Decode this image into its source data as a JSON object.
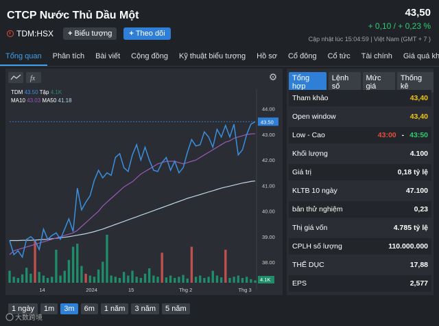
{
  "header": {
    "title": "CTCP Nước Thủ Dầu Một",
    "ticker": "TDM:HSX",
    "chart_button": "Biểu tượng",
    "follow_button": "Theo dõi",
    "price": "43,50",
    "change": "+ 0,10 / + 0,23 %",
    "updated": "Cập nhật lúc   15:04:59 | Việt Nam (GMT + 7 )"
  },
  "tabs": [
    "Tổng quan",
    "Phân tích",
    "Bài viết",
    "Cộng đồng",
    "Kỹ thuật biểu tượng",
    "Hồ sơ",
    "Cổ đông",
    "Cổ tức",
    "Tài chính",
    "Giá quá khứ"
  ],
  "legend": {
    "ticker": "TDM",
    "price": "43.50",
    "vol_label": "Tập",
    "vol": "4.1K",
    "ma10_label": "MA10",
    "ma10": "43.03",
    "ma50_label": "MA50",
    "ma50": "41.18"
  },
  "ranges": [
    "1 ngày",
    "1m",
    "3m",
    "6m",
    "1 năm",
    "3 năm",
    "5 năm"
  ],
  "side": {
    "subtabs": [
      "Tổng hợp",
      "Lệnh số",
      "Mức giá",
      "Thống kê"
    ],
    "rows": [
      {
        "label": "Tham khảo",
        "value": "43,40"
      },
      {
        "label": "Open window",
        "value": "43,40"
      },
      {
        "label": "Low - Cao",
        "low": "43:00",
        "sep": "-",
        "high": "43:50"
      },
      {
        "label": "Khối lượng",
        "value": "4.100"
      },
      {
        "label": "Giá trị",
        "value": "0,18 tỷ lệ"
      },
      {
        "label": "KLTB 10 ngày",
        "value": "47.100"
      },
      {
        "label": "bản thử nghiệm",
        "value": "0,23"
      },
      {
        "label": "Thị giá vốn",
        "value": "4.785 tỷ lệ"
      },
      {
        "label": "CPLH số lượng",
        "value": "110.000.000"
      },
      {
        "label": "THỂ DỤC",
        "value": "17,88"
      },
      {
        "label": "EPS",
        "value": "2,577"
      }
    ]
  },
  "chart_data": {
    "type": "line",
    "y_ticks": [
      "44.00",
      "43.00",
      "42.00",
      "41.00",
      "40.00",
      "39.00",
      "38.00"
    ],
    "x_ticks": [
      "14",
      "2024",
      "15",
      "Thg 2",
      "Thg 3"
    ],
    "last_price_label": "43.50",
    "volume_label": "4.1K",
    "ylim": [
      37.2,
      44.5
    ],
    "price": [
      38.85,
      38.3,
      38.45,
      38.2,
      38.9,
      39.0,
      38.85,
      38.5,
      39.3,
      38.9,
      39.05,
      39.15,
      38.9,
      39.3,
      39.7,
      39.2,
      40.9,
      40.05,
      40.35,
      40.6,
      41.2,
      41.6,
      41.3,
      41.5,
      41.4,
      42.1,
      42.25,
      41.7,
      41.55,
      42.2,
      42.6,
      42.0,
      42.5,
      42.0,
      41.6,
      41.55,
      41.9,
      42.1,
      41.6,
      41.95,
      41.5,
      41.7,
      42.3,
      42.8,
      42.55,
      42.6,
      43.1,
      42.9,
      42.5,
      43.2,
      42.9,
      43.35,
      42.9,
      43.4,
      42.2,
      42.4,
      43.0,
      43.4,
      43.5
    ],
    "ma10": [
      38.3,
      38.45,
      38.5,
      38.55,
      38.6,
      38.65,
      38.7,
      38.75,
      38.8,
      38.85,
      38.9,
      38.95,
      39.0,
      39.05,
      39.1,
      39.15,
      39.25,
      39.4,
      39.55,
      39.7,
      39.85,
      40.0,
      40.2,
      40.35,
      40.5,
      40.65,
      40.8,
      40.95,
      41.05,
      41.15,
      41.3,
      41.45,
      41.55,
      41.65,
      41.75,
      41.85,
      41.9,
      41.95,
      41.95,
      41.95,
      41.9,
      41.85,
      41.9,
      41.95,
      42.0,
      42.1,
      42.2,
      42.3,
      42.4,
      42.5,
      42.6,
      42.7,
      42.75,
      42.85,
      42.9,
      42.95,
      43.0,
      43.02,
      43.03
    ],
    "ma50": [
      38.85,
      38.85,
      38.85,
      38.86,
      38.86,
      38.86,
      38.87,
      38.88,
      38.89,
      38.9,
      38.92,
      38.94,
      38.96,
      38.98,
      39.0,
      39.03,
      39.06,
      39.09,
      39.12,
      39.16,
      39.2,
      39.25,
      39.3,
      39.36,
      39.42,
      39.48,
      39.54,
      39.6,
      39.66,
      39.72,
      39.78,
      39.84,
      39.9,
      39.96,
      40.02,
      40.08,
      40.14,
      40.2,
      40.26,
      40.32,
      40.38,
      40.44,
      40.5,
      40.55,
      40.6,
      40.65,
      40.7,
      40.75,
      40.8,
      40.85,
      40.9,
      40.94,
      40.98,
      41.02,
      41.06,
      41.1,
      41.13,
      41.16,
      41.18
    ],
    "volume": [
      20,
      10,
      8,
      14,
      25,
      15,
      70,
      18,
      12,
      8,
      10,
      55,
      12,
      20,
      38,
      60,
      65,
      28,
      15,
      12,
      10,
      22,
      35,
      80,
      12,
      10,
      8,
      18,
      12,
      20,
      10,
      8,
      15,
      24,
      12,
      10,
      50,
      9,
      12,
      8,
      10,
      13,
      7,
      60,
      10,
      12,
      8,
      10,
      20,
      12,
      9,
      55,
      8,
      10,
      12,
      8,
      10,
      6,
      4
    ],
    "volume_down": [
      6,
      18,
      36,
      43,
      51
    ]
  }
}
